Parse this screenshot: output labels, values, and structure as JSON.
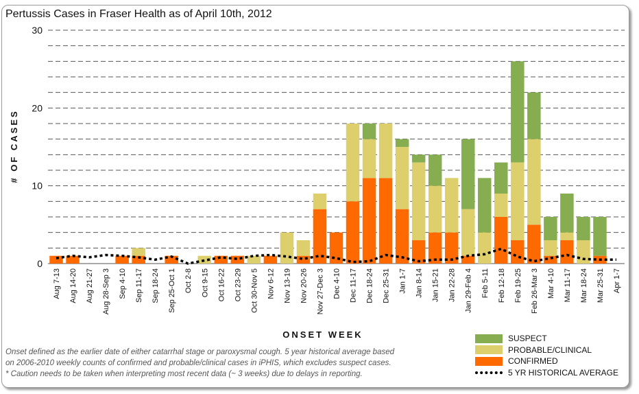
{
  "title": "Pertussis Cases in Fraser Health as of April 10th, 2012",
  "notes": {
    "line1": "Onset defined as the earlier date of either catarrhal stage or paroxysmal cough. 5 year historical average based",
    "line2": "on 2006-2010 weekly counts of confirmed and probable/clinical cases in iPHIS, which excludes suspect cases.",
    "line3": "* Caution needs to be taken when interpreting most recent data (~ 3 weeks) due to delays in reporting."
  },
  "legend": {
    "suspect": "SUSPECT",
    "probable": "PROBABLE/CLINICAL",
    "confirmed": "CONFIRMED",
    "average": "5 YR HISTORICAL AVERAGE"
  },
  "colors": {
    "suspect": "#86AD50",
    "probable": "#DDCF6B",
    "confirmed": "#FF6A00",
    "average": "#000000"
  },
  "chart_data": {
    "type": "bar",
    "stacked": true,
    "title": "Pertussis Cases in Fraser Health as of April 10th, 2012",
    "xlabel": "ONSET WEEK",
    "ylabel": "# OF CASES",
    "ylim": [
      0,
      30
    ],
    "yticks": [
      0,
      10,
      20,
      30
    ],
    "grid": true,
    "legend_position": "bottom-right",
    "categories": [
      "Aug 7-13",
      "Aug 14-20",
      "Aug 21-27",
      "Aug 28-Sep 3",
      "Sep 4-10",
      "Sep 11-17",
      "Sep 18-24",
      "Sep 25-Oct 1",
      "Oct 2-8",
      "Oct 9-15",
      "Oct 16-22",
      "Oct 23-29",
      "Oct 30-Nov 5",
      "Nov 6-12",
      "Nov 13-19",
      "Nov 20-26",
      "Nov 27-Dec 3",
      "Dec 4-10",
      "Dec 11-17",
      "Dec 18-24",
      "Dec 25-31",
      "Jan 1-7",
      "Jan 8-14",
      "Jan 15-21",
      "Jan 22-28",
      "Jan 29-Feb 4",
      "Feb 5-11",
      "Feb 12-18",
      "Feb 19-25",
      "Feb 26-Mar 3",
      "Mar 4-10",
      "Mar 11-17",
      "Mar 18-24",
      "Mar 25-31",
      "Apr 1-7"
    ],
    "series": [
      {
        "name": "CONFIRMED",
        "type": "bar",
        "values": [
          1,
          1,
          0,
          0,
          1,
          1,
          0,
          1,
          0,
          0,
          1,
          1,
          0,
          1,
          0,
          1,
          7,
          4,
          8,
          11,
          11,
          7,
          3,
          4,
          4,
          1,
          0,
          6,
          3,
          5,
          1,
          3,
          0,
          1,
          0
        ]
      },
      {
        "name": "PROBABLE/CLINICAL",
        "type": "bar",
        "values": [
          0,
          0,
          0,
          0,
          0,
          1,
          0,
          0,
          0,
          1,
          0,
          0,
          1,
          0,
          4,
          2,
          2,
          0,
          10,
          5,
          7,
          8,
          10,
          6,
          7,
          6,
          4,
          3,
          10,
          11,
          2,
          1,
          3,
          0,
          0
        ]
      },
      {
        "name": "SUSPECT",
        "type": "bar",
        "values": [
          0,
          0,
          0,
          0,
          0,
          0,
          0,
          0,
          0,
          0,
          0,
          0,
          0,
          0,
          0,
          0,
          0,
          0,
          0,
          2,
          0,
          1,
          1,
          4,
          0,
          9,
          7,
          4,
          13,
          6,
          3,
          5,
          3,
          5,
          0
        ]
      },
      {
        "name": "5 YR HISTORICAL AVERAGE",
        "type": "line",
        "values": [
          0.7,
          1.0,
          0.8,
          1.1,
          1.0,
          0.8,
          0.5,
          0.9,
          0.0,
          0.4,
          0.8,
          0.6,
          1.0,
          1.1,
          0.9,
          0.6,
          1.0,
          0.7,
          0.2,
          0.3,
          1.1,
          0.8,
          0.3,
          0.5,
          0.5,
          1.0,
          1.2,
          1.9,
          0.9,
          0.3,
          0.7,
          1.1,
          0.6,
          0.5,
          0.5
        ]
      }
    ]
  }
}
